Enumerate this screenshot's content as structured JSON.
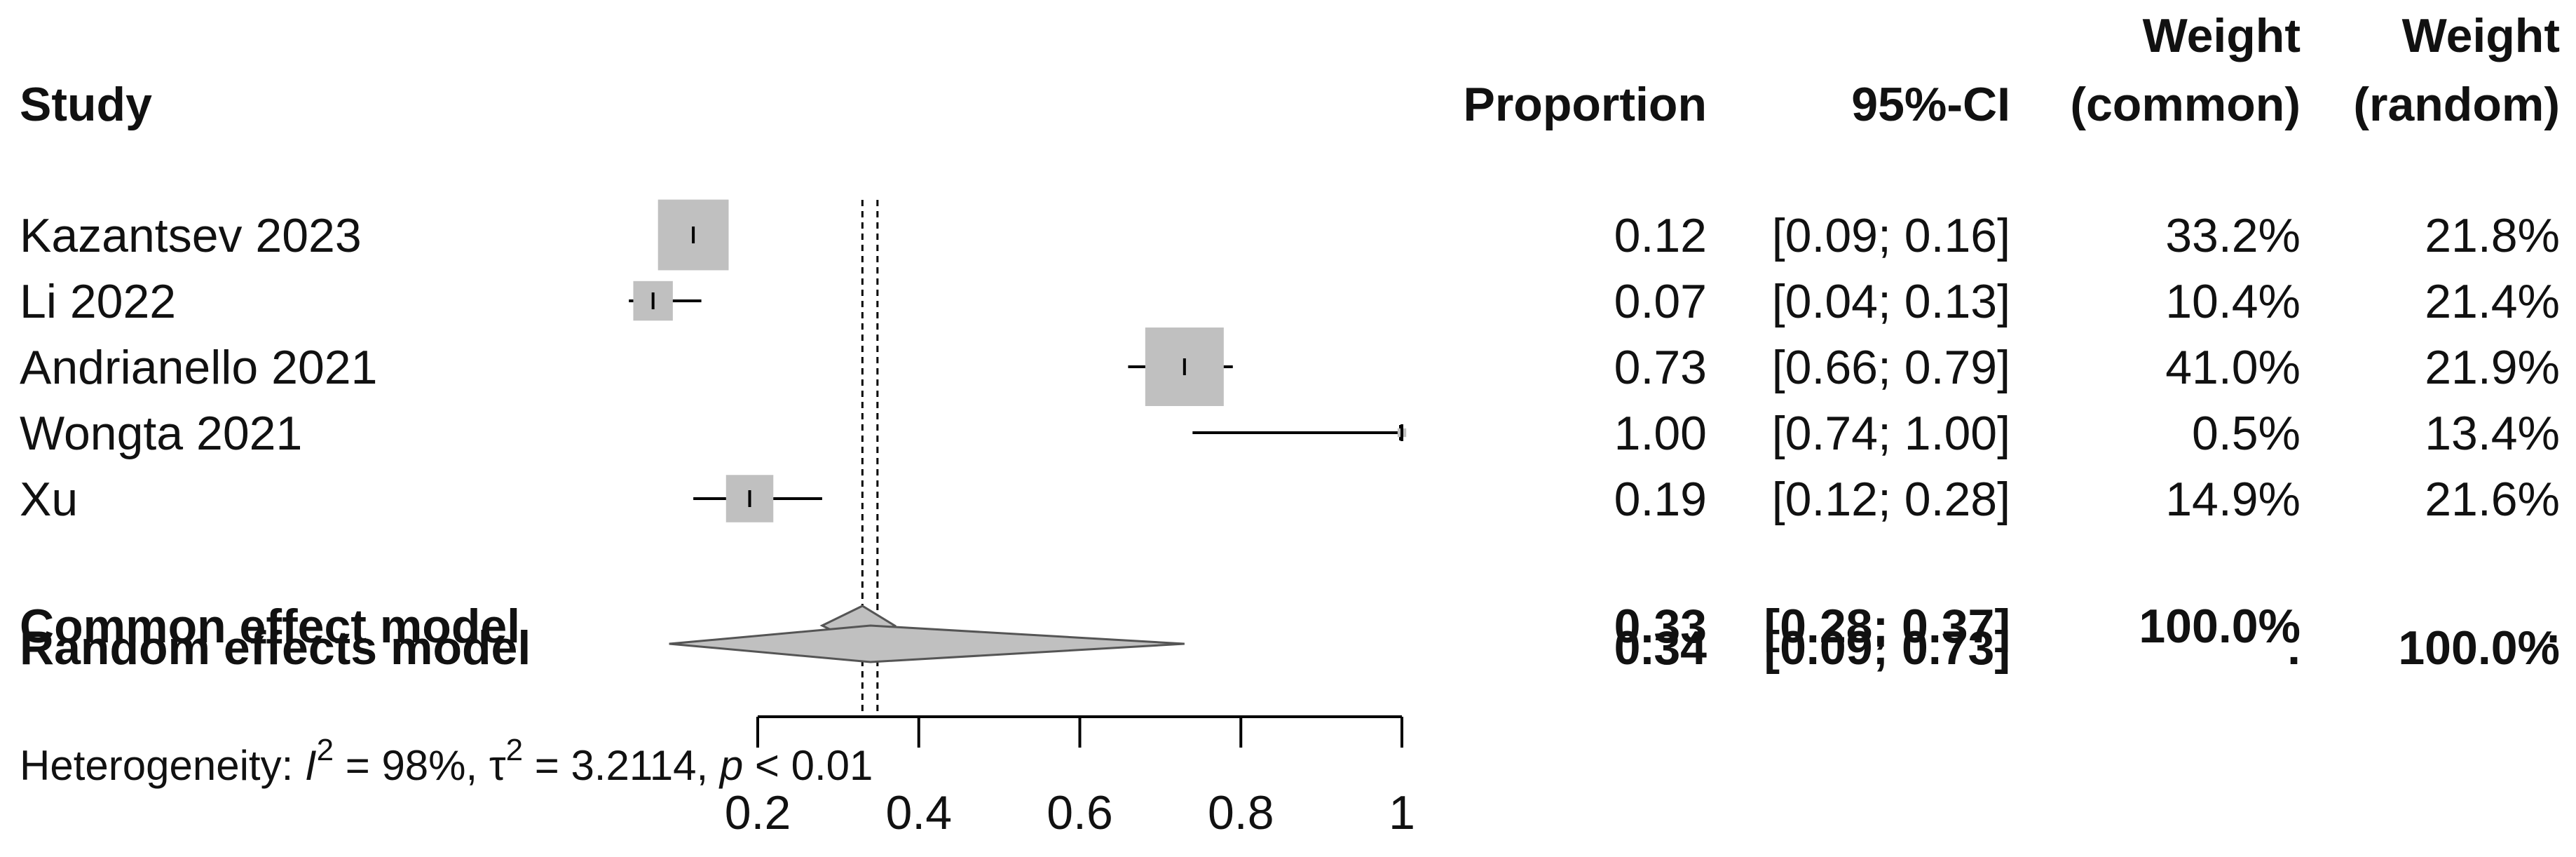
{
  "chart_data": {
    "type": "forest",
    "headers": {
      "study": "Study",
      "proportion": "Proportion",
      "ci": "95%-CI",
      "weight_common": [
        "Weight",
        "(common)"
      ],
      "weight_random": [
        "Weight",
        "(random)"
      ]
    },
    "studies": [
      {
        "name": "Kazantsev 2023",
        "proportion": 0.12,
        "ci_low": 0.09,
        "ci_high": 0.16,
        "proportion_label": "0.12",
        "ci_label": "[0.09; 0.16]",
        "weight_common": 33.2,
        "weight_random": 21.8,
        "weight_common_label": "33.2%",
        "weight_random_label": "21.8%"
      },
      {
        "name": "Li 2022",
        "proportion": 0.07,
        "ci_low": 0.04,
        "ci_high": 0.13,
        "proportion_label": "0.07",
        "ci_label": "[0.04; 0.13]",
        "weight_common": 10.4,
        "weight_random": 21.4,
        "weight_common_label": "10.4%",
        "weight_random_label": "21.4%"
      },
      {
        "name": "Andrianello 2021",
        "proportion": 0.73,
        "ci_low": 0.66,
        "ci_high": 0.79,
        "proportion_label": "0.73",
        "ci_label": "[0.66; 0.79]",
        "weight_common": 41.0,
        "weight_random": 21.9,
        "weight_common_label": "41.0%",
        "weight_random_label": "21.9%"
      },
      {
        "name": "Wongta 2021",
        "proportion": 1.0,
        "ci_low": 0.74,
        "ci_high": 1.0,
        "proportion_label": "1.00",
        "ci_label": "[0.74; 1.00]",
        "weight_common": 0.5,
        "weight_random": 13.4,
        "weight_common_label": "0.5%",
        "weight_random_label": "13.4%"
      },
      {
        "name": "Xu",
        "proportion": 0.19,
        "ci_low": 0.12,
        "ci_high": 0.28,
        "proportion_label": "0.19",
        "ci_label": "[0.12; 0.28]",
        "weight_common": 14.9,
        "weight_random": 21.6,
        "weight_common_label": "14.9%",
        "weight_random_label": "21.6%"
      }
    ],
    "models": [
      {
        "name": "Common effect model",
        "proportion": 0.33,
        "ci_low": 0.28,
        "ci_high": 0.37,
        "proportion_label": "0.33",
        "ci_label": "[0.28; 0.37]",
        "weight_common_label": "100.0%",
        "weight_random_label": "."
      },
      {
        "name": "Random effects model",
        "proportion": 0.34,
        "ci_low": 0.09,
        "ci_high": 0.73,
        "proportion_label": "0.34",
        "ci_label": "[0.09; 0.73]",
        "weight_common_label": ".",
        "weight_random_label": "100.0%"
      }
    ],
    "heterogeneity": {
      "prefix": "Heterogeneity: ",
      "i2_symbol": "I",
      "i2_value": " = 98%, ",
      "tau2_symbol": "τ",
      "tau2_value": " = 3.2114, ",
      "p_symbol": "p",
      "p_value": " < 0.01",
      "superscript": "2"
    },
    "x_axis": {
      "ticks": [
        0.2,
        0.4,
        0.6,
        0.8,
        1
      ],
      "tick_labels": [
        "0.2",
        "0.4",
        "0.6",
        "0.8",
        "1"
      ]
    },
    "reference_lines": {
      "common": 0.33,
      "random": 0.34
    },
    "colors": {
      "square": "#c0c0c0",
      "diamond": "#c0c0c0",
      "line": "#000000"
    }
  }
}
